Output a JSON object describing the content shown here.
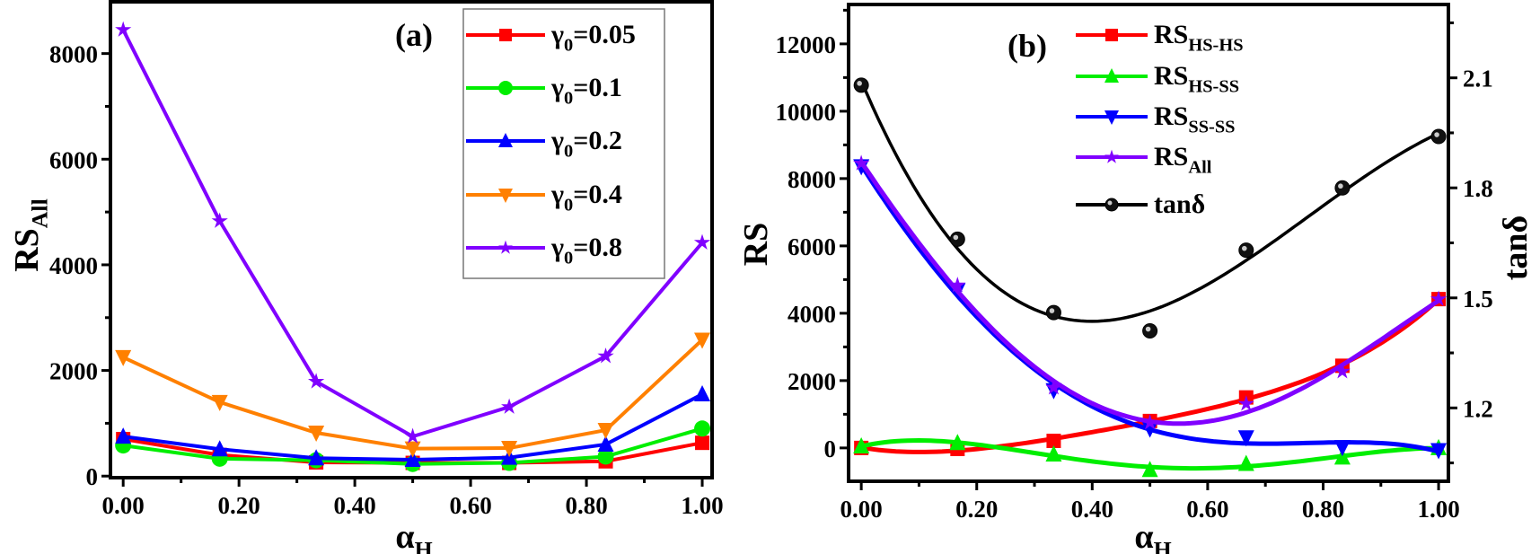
{
  "chart_data": [
    {
      "panel_label": "(a)",
      "type": "line",
      "x": [
        0,
        0.1667,
        0.3333,
        0.5,
        0.6667,
        0.8333,
        1.0
      ],
      "xlabel": {
        "base": "α",
        "sub": "H"
      },
      "ylabel": {
        "base": "RS",
        "sub": "All"
      },
      "xlim": [
        -0.022,
        1.017
      ],
      "ylim": [
        -30,
        8980
      ],
      "xticks": [
        "0.00",
        "0.20",
        "0.40",
        "0.60",
        "0.80",
        "1.00"
      ],
      "yticks": [
        "0",
        "2000",
        "4000",
        "6000",
        "8000"
      ],
      "grid": false,
      "legend": "top-right",
      "series": [
        {
          "name": {
            "base": "γ",
            "sub": "0",
            "tail": "=0.05"
          },
          "color": "#ff0000",
          "marker": "square",
          "values": [
            700,
            400,
            260,
            250,
            250,
            280,
            630
          ]
        },
        {
          "name": {
            "base": "γ",
            "sub": "0",
            "tail": "=0.1"
          },
          "color": "#00ee00",
          "marker": "circle",
          "values": [
            580,
            330,
            300,
            230,
            250,
            370,
            900
          ]
        },
        {
          "name": {
            "base": "γ",
            "sub": "0",
            "tail": "=0.2"
          },
          "color": "#0000ff",
          "marker": "triangle-up",
          "values": [
            750,
            510,
            340,
            310,
            350,
            600,
            1550
          ]
        },
        {
          "name": {
            "base": "γ",
            "sub": "0",
            "tail": "=0.4"
          },
          "color": "#ff8000",
          "marker": "triangle-down",
          "values": [
            2250,
            1400,
            820,
            520,
            530,
            870,
            2580
          ]
        },
        {
          "name": {
            "base": "γ",
            "sub": "0",
            "tail": "=0.8"
          },
          "color": "#8000ff",
          "marker": "star",
          "values": [
            8450,
            4830,
            1790,
            750,
            1310,
            2270,
            4420
          ]
        }
      ]
    },
    {
      "panel_label": "(b)",
      "type": "line",
      "x": [
        0,
        0.1667,
        0.3333,
        0.5,
        0.6667,
        0.8333,
        1.0
      ],
      "xlabel": {
        "base": "α",
        "sub": "H"
      },
      "ylabel": {
        "base": "RS",
        "sub": ""
      },
      "y2label": "tanδ",
      "xlim": [
        -0.022,
        1.017
      ],
      "ylim": [
        -990,
        13170
      ],
      "y2lim": [
        1.0,
        2.3
      ],
      "xticks": [
        "0.00",
        "0.20",
        "0.40",
        "0.60",
        "0.80",
        "1.00"
      ],
      "yticks": [
        "0",
        "2000",
        "4000",
        "6000",
        "8000",
        "10000",
        "12000"
      ],
      "y2ticks": [
        "1.2",
        "1.5",
        "1.8",
        "2.1"
      ],
      "grid": false,
      "legend": "top-center",
      "curves": "smooth fit",
      "series": [
        {
          "name": {
            "base": "RS",
            "sub": "HS-HS",
            "tail": ""
          },
          "color": "#ff0000",
          "marker": "square",
          "axis": "left",
          "values": [
            0,
            -30,
            210,
            800,
            1500,
            2440,
            4420
          ]
        },
        {
          "name": {
            "base": "RS",
            "sub": "HS-SS",
            "tail": ""
          },
          "color": "#00ee00",
          "marker": "triangle-up",
          "axis": "left",
          "values": [
            50,
            150,
            -190,
            -650,
            -470,
            -280,
            0
          ]
        },
        {
          "name": {
            "base": "RS",
            "sub": "SS-SS",
            "tail": ""
          },
          "color": "#0000ff",
          "marker": "triangle-down",
          "axis": "left",
          "values": [
            8360,
            4680,
            1710,
            570,
            310,
            20,
            -70
          ]
        },
        {
          "name": {
            "base": "RS",
            "sub": "All",
            "tail": ""
          },
          "color": "#8000ff",
          "marker": "star",
          "axis": "left",
          "values": [
            8450,
            4830,
            1790,
            750,
            1310,
            2270,
            4420
          ]
        },
        {
          "name": {
            "base": "tanδ",
            "sub": "",
            "tail": ""
          },
          "color": "#000000",
          "marker": "ball",
          "axis": "right",
          "values": [
            2.08,
            1.66,
            1.46,
            1.41,
            1.63,
            1.8,
            1.94
          ]
        }
      ]
    }
  ]
}
